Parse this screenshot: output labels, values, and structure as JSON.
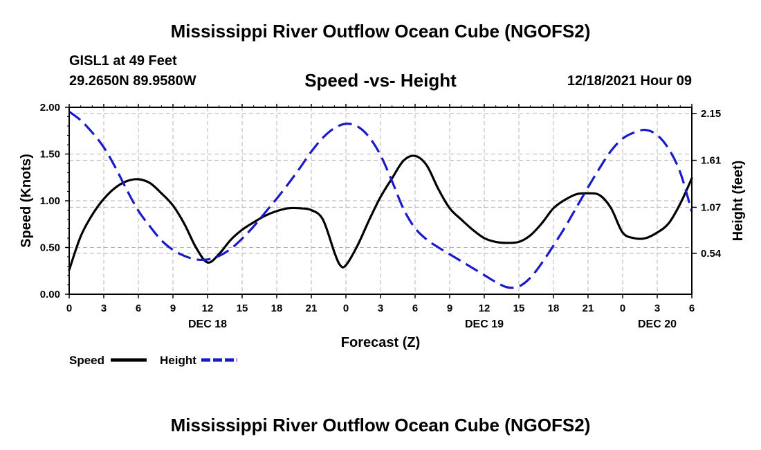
{
  "header": {
    "title_top": "Mississippi River Outflow Ocean Cube (NGOFS2)",
    "station": "GISL1 at 49 Feet",
    "coordinates": "29.2650N  89.9580W",
    "subtitle": "Speed -vs- Height",
    "datetime": "12/18/2021 Hour 09",
    "title_bottom": "Mississippi River Outflow Ocean Cube (NGOFS2)"
  },
  "colors": {
    "speed": "#000000",
    "height": "#1a1ac8",
    "grid": "#b4b4b4"
  },
  "chart_data": {
    "type": "line",
    "title": "Speed -vs- Height",
    "xlabel": "Forecast (Z)",
    "ylabel": "Speed (Knots)",
    "y2label": "Height (feet)",
    "xlim": [
      0,
      54
    ],
    "ylim": [
      0,
      2.0
    ],
    "y2lim": [
      0.07,
      2.22
    ],
    "x_ticks": [
      0,
      3,
      6,
      9,
      12,
      15,
      18,
      21,
      24,
      27,
      30,
      33,
      36,
      39,
      42,
      45,
      48,
      51,
      54
    ],
    "x_tick_labels": [
      "0",
      "3",
      "6",
      "9",
      "12",
      "15",
      "18",
      "21",
      "0",
      "3",
      "6",
      "9",
      "12",
      "15",
      "18",
      "21",
      "0",
      "3",
      "6"
    ],
    "y_ticks": [
      0.0,
      0.5,
      1.0,
      1.5,
      2.0
    ],
    "y_tick_labels": [
      "0.00",
      "0.50",
      "1.00",
      "1.50",
      "2.00"
    ],
    "y2_ticks": [
      0.54,
      1.07,
      1.61,
      2.15
    ],
    "y2_tick_labels": [
      "0.54",
      "1.07",
      "1.61",
      "2.15"
    ],
    "date_labels": [
      {
        "x": 12,
        "label": "DEC 18"
      },
      {
        "x": 36,
        "label": "DEC 19"
      },
      {
        "x": 51,
        "label": "DEC 20"
      }
    ],
    "legend": {
      "placement": "bottom-left",
      "entries": [
        "Speed",
        "Height"
      ]
    },
    "series": [
      {
        "name": "Speed",
        "axis": "left",
        "style": "solid",
        "x": [
          0,
          1,
          2,
          3,
          4,
          5,
          6,
          7,
          8,
          9,
          10,
          11,
          12,
          13,
          14,
          15,
          16,
          17,
          18,
          19,
          20,
          21,
          22,
          23,
          23.5,
          24,
          25,
          26,
          27,
          28,
          29,
          30,
          31,
          32,
          33,
          34,
          35,
          36,
          37,
          38,
          39,
          40,
          41,
          42,
          43,
          44,
          45,
          46,
          47,
          48,
          49,
          50,
          51,
          52,
          53,
          54
        ],
        "y": [
          0.26,
          0.62,
          0.85,
          1.02,
          1.14,
          1.21,
          1.23,
          1.19,
          1.08,
          0.95,
          0.75,
          0.5,
          0.34,
          0.43,
          0.58,
          0.69,
          0.77,
          0.84,
          0.89,
          0.92,
          0.92,
          0.9,
          0.8,
          0.45,
          0.31,
          0.31,
          0.52,
          0.79,
          1.04,
          1.24,
          1.43,
          1.48,
          1.38,
          1.13,
          0.92,
          0.8,
          0.69,
          0.6,
          0.56,
          0.55,
          0.56,
          0.63,
          0.76,
          0.92,
          1.01,
          1.07,
          1.08,
          1.06,
          0.92,
          0.66,
          0.6,
          0.6,
          0.66,
          0.76,
          0.97,
          1.24
        ]
      },
      {
        "name": "Height",
        "axis": "right",
        "style": "dashed",
        "x": [
          0,
          1,
          2,
          3,
          4,
          5,
          6,
          7,
          8,
          9,
          10,
          11,
          12,
          13,
          14,
          15,
          16,
          17,
          18,
          19,
          20,
          21,
          22,
          23,
          24,
          25,
          26,
          27,
          28,
          29,
          30,
          31,
          32,
          33,
          34,
          35,
          36,
          37,
          38,
          39,
          40,
          41,
          42,
          43,
          44,
          45,
          46,
          47,
          48,
          49,
          50,
          51,
          52,
          53,
          54
        ],
        "y": [
          2.17,
          2.07,
          1.93,
          1.76,
          1.53,
          1.27,
          1.03,
          0.85,
          0.69,
          0.58,
          0.51,
          0.47,
          0.47,
          0.51,
          0.59,
          0.71,
          0.85,
          1.01,
          1.17,
          1.34,
          1.52,
          1.71,
          1.87,
          1.98,
          2.03,
          2.0,
          1.88,
          1.67,
          1.37,
          1.05,
          0.83,
          0.7,
          0.61,
          0.53,
          0.45,
          0.37,
          0.29,
          0.21,
          0.15,
          0.16,
          0.26,
          0.43,
          0.63,
          0.84,
          1.07,
          1.3,
          1.52,
          1.72,
          1.86,
          1.93,
          1.96,
          1.9,
          1.74,
          1.47,
          1.02
        ]
      }
    ]
  }
}
